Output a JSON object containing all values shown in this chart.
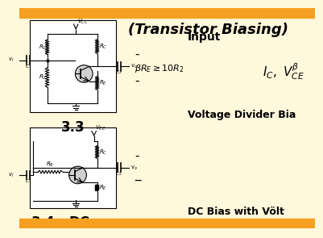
{
  "bg_color": "#FEF8DC",
  "top_bar_color": "#F5A020",
  "bottom_bar_color": "#F5A020",
  "title": "(Transistor Biasing)",
  "subtitle": "Input",
  "label_33": "3.3",
  "label_34": "3.4",
  "label_dc": "DC",
  "voltage_divider_text": "Voltage Divider Bia",
  "dc_bias_text": "DC Bias with Völt",
  "bullet1": "-",
  "bullet2": "-",
  "bullet3": "-",
  "bullet4": "_"
}
